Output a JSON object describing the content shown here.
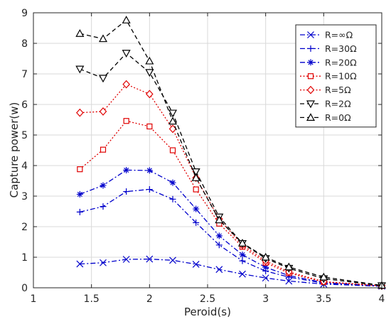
{
  "chart_data": {
    "type": "line",
    "xlabel": "Peroid(s)",
    "ylabel": "Capture power(w)",
    "xlim": [
      1,
      4
    ],
    "ylim": [
      0,
      9
    ],
    "xticks": [
      "1",
      "1.5",
      "2",
      "2.5",
      "3",
      "3.5",
      "4"
    ],
    "yticks": [
      "0",
      "1",
      "2",
      "3",
      "4",
      "5",
      "6",
      "7",
      "8",
      "9"
    ],
    "grid": true,
    "legend_position": "top-right",
    "x": [
      1.4,
      1.6,
      1.8,
      2.0,
      2.2,
      2.4,
      2.6,
      2.8,
      3.0,
      3.2,
      3.5,
      4.0
    ],
    "series": [
      {
        "name": "R=∞Ω",
        "color": "#0000cc",
        "line": "dashdot",
        "marker": "x",
        "values": [
          0.78,
          0.82,
          0.93,
          0.94,
          0.9,
          0.77,
          0.6,
          0.45,
          0.32,
          0.22,
          0.12,
          0.05
        ]
      },
      {
        "name": "R=30Ω",
        "color": "#0000cc",
        "line": "dashdot",
        "marker": "plus",
        "values": [
          2.48,
          2.66,
          3.15,
          3.22,
          2.9,
          2.13,
          1.4,
          0.88,
          0.55,
          0.35,
          0.15,
          0.06
        ]
      },
      {
        "name": "R=20Ω",
        "color": "#0000cc",
        "line": "dashdot",
        "marker": "star",
        "values": [
          3.06,
          3.35,
          3.85,
          3.84,
          3.44,
          2.58,
          1.7,
          1.08,
          0.67,
          0.4,
          0.17,
          0.06
        ]
      },
      {
        "name": "R=10Ω",
        "color": "#e00000",
        "line": "dotted",
        "marker": "square",
        "values": [
          3.88,
          4.52,
          5.46,
          5.28,
          4.5,
          3.22,
          2.1,
          1.34,
          0.82,
          0.48,
          0.19,
          0.06
        ]
      },
      {
        "name": "R=5Ω",
        "color": "#e00000",
        "line": "dotted",
        "marker": "diamond",
        "values": [
          5.73,
          5.77,
          6.66,
          6.34,
          5.2,
          3.6,
          2.25,
          1.4,
          0.88,
          0.52,
          0.2,
          0.07
        ]
      },
      {
        "name": "R=2Ω",
        "color": "#000000",
        "line": "dashed",
        "marker": "triangle-down",
        "values": [
          7.16,
          6.86,
          7.68,
          7.05,
          5.72,
          3.8,
          2.32,
          1.45,
          0.96,
          0.64,
          0.3,
          0.07
        ]
      },
      {
        "name": "R=0Ω",
        "color": "#000000",
        "line": "dashed",
        "marker": "triangle-up",
        "values": [
          8.32,
          8.15,
          8.76,
          7.42,
          5.45,
          3.6,
          2.22,
          1.46,
          1.0,
          0.68,
          0.35,
          0.08
        ]
      }
    ]
  }
}
